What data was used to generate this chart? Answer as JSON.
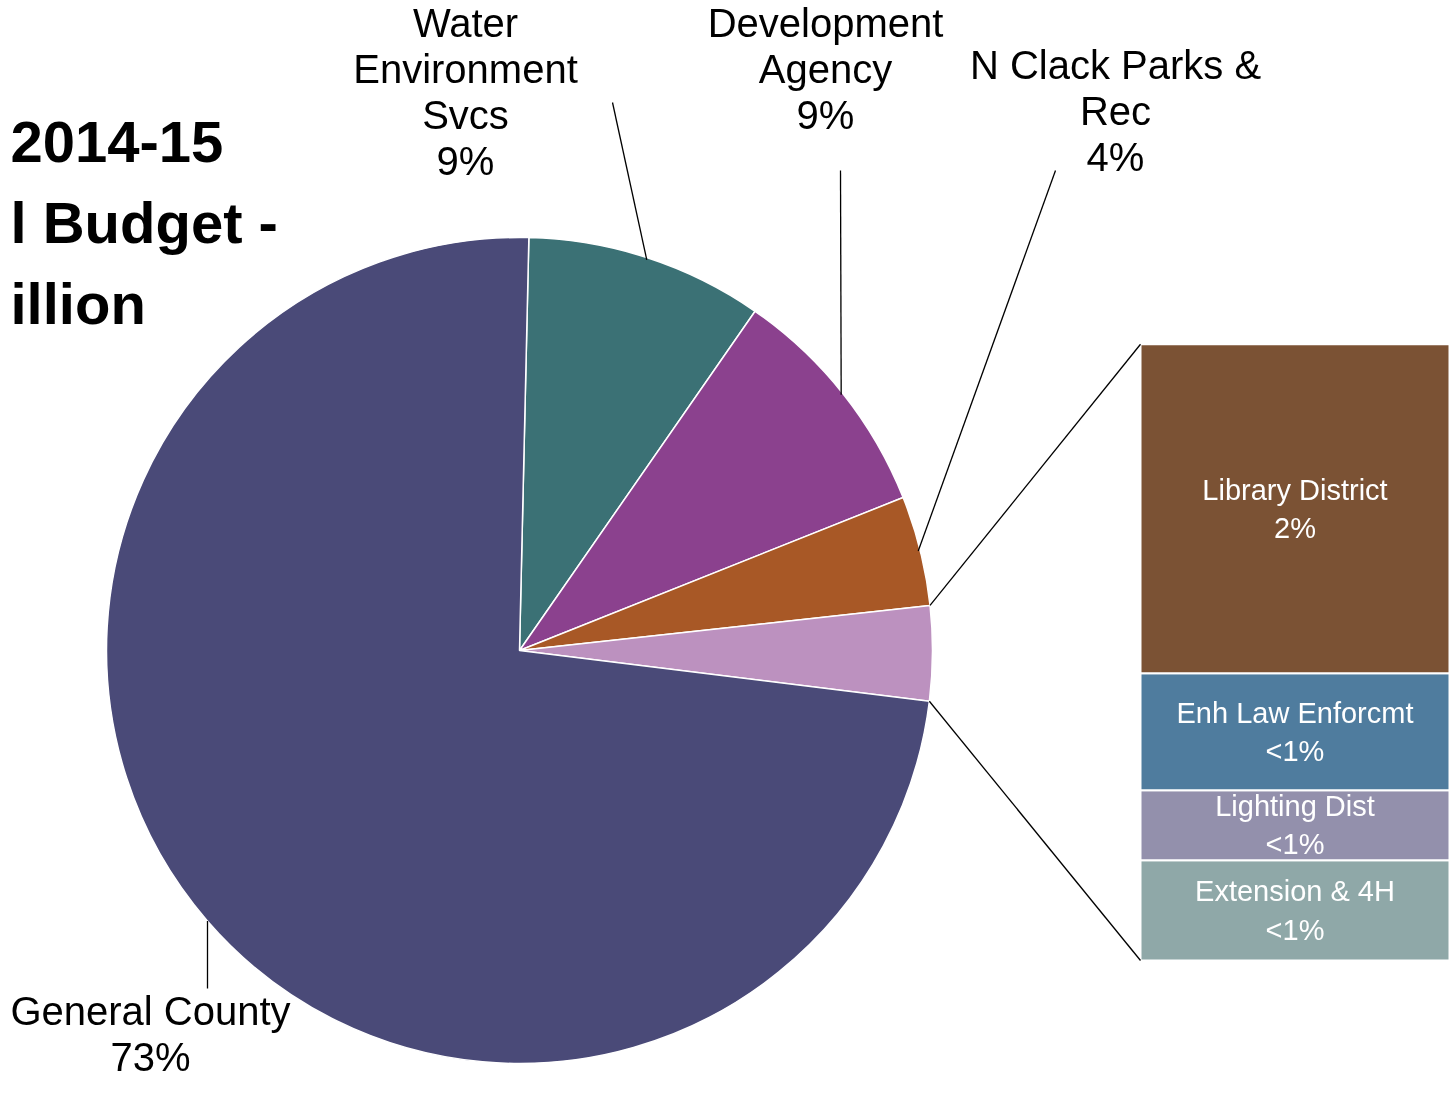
{
  "chart_data": [
    {
      "type": "pie",
      "title": "2014-15\nl Budget -\nillion",
      "categories": [
        "Water Environment Svcs",
        "Development Agency",
        "N Clack Parks & Rec",
        null,
        "General County"
      ],
      "values": [
        9.3,
        9.3,
        4.3,
        3.7,
        73.4
      ],
      "value_labels": [
        "9%",
        "9%",
        "4%",
        null,
        "73%"
      ],
      "colors": [
        "#3b7175",
        "#8b418e",
        "#a85826",
        "#bc91bf",
        "#4a4a78"
      ]
    },
    {
      "type": "bar",
      "stacked": true,
      "categories": [
        null
      ],
      "series": [
        {
          "name": "Extension & 4H",
          "color": "#8fa8a8",
          "values": [
            0.6
          ],
          "value_labels": [
            "<1%"
          ]
        },
        {
          "name": "Lighting Dist",
          "color": "#9390ac",
          "values": [
            0.42
          ],
          "value_labels": [
            "<1%"
          ]
        },
        {
          "name": "Enh Law Enforcmt",
          "color": "#4f7c9e",
          "values": [
            0.7
          ],
          "value_labels": [
            "<1%"
          ]
        },
        {
          "name": "Library District",
          "color": "#7b5234",
          "values": [
            1.97
          ],
          "value_labels": [
            "2%"
          ]
        }
      ]
    }
  ]
}
